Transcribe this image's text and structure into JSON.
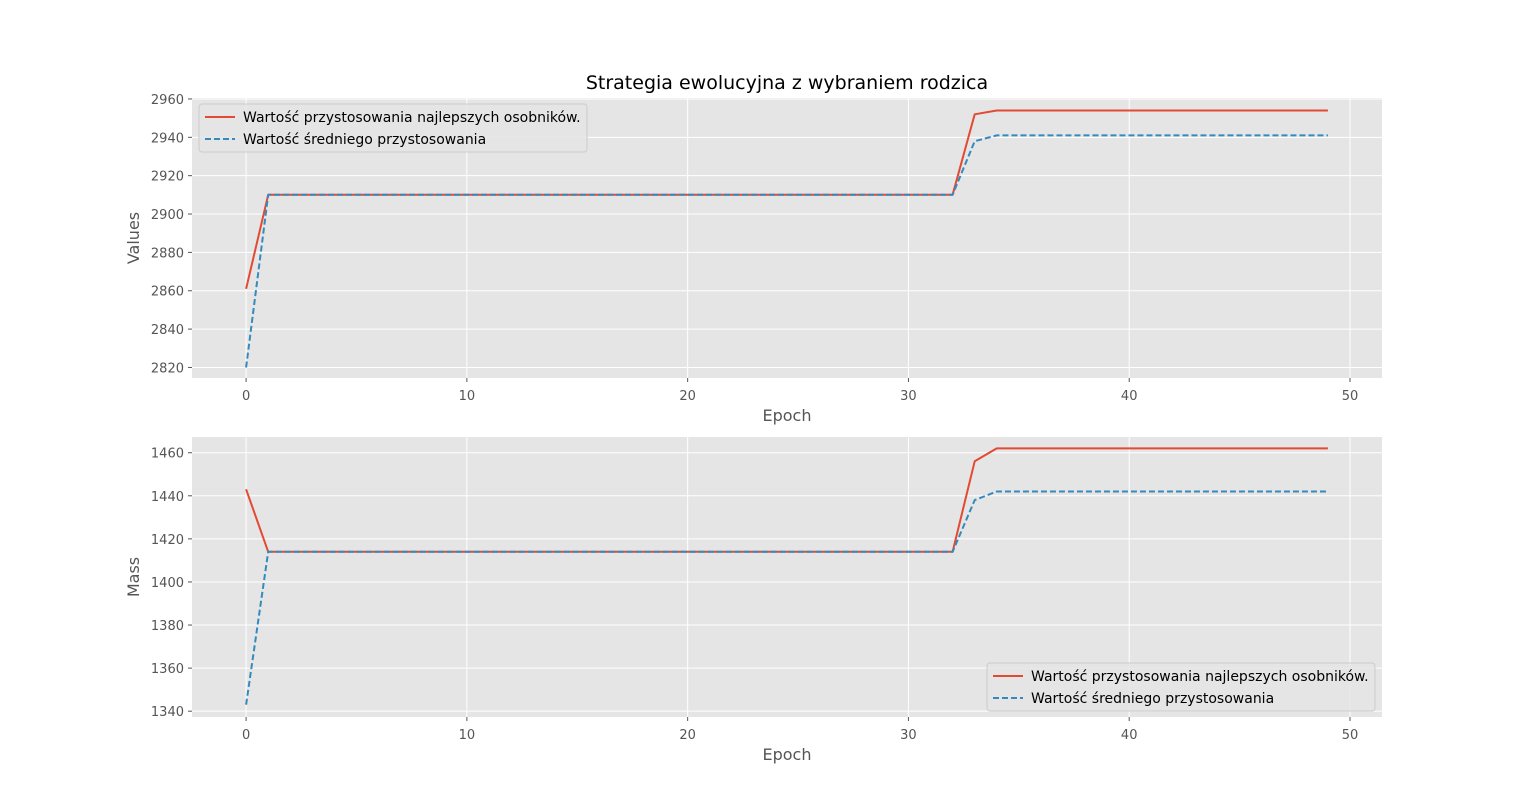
{
  "figure_title": "Strategia ewolucyjna z wybraniem rodzica",
  "colors": {
    "best": "#E24A33",
    "mean": "#348ABD",
    "plot_bg": "#E5E5E5",
    "grid": "#FFFFFF"
  },
  "chart_data": [
    {
      "type": "line",
      "xlabel": "Epoch",
      "ylabel": "Values",
      "xlim": [
        -2.45,
        51.45
      ],
      "ylim": [
        2814.5,
        2960.5
      ],
      "xticks": [
        0,
        10,
        20,
        30,
        40,
        50
      ],
      "yticks": [
        2820,
        2840,
        2860,
        2880,
        2900,
        2920,
        2940,
        2960
      ],
      "grid": true,
      "legend_position": "upper left",
      "series": [
        {
          "name": "Wartość przystosowania najlepszych osobników.",
          "style": "solid",
          "color": "#E24A33",
          "points": [
            [
              0,
              2861
            ],
            [
              1,
              2910
            ],
            [
              32,
              2910
            ],
            [
              33,
              2952
            ],
            [
              34,
              2954
            ],
            [
              49,
              2954
            ]
          ]
        },
        {
          "name": "Wartość średniego przystosowania",
          "style": "dashed",
          "color": "#348ABD",
          "points": [
            [
              0,
              2820
            ],
            [
              1,
              2910
            ],
            [
              32,
              2910
            ],
            [
              33,
              2938
            ],
            [
              34,
              2941
            ],
            [
              49,
              2941
            ]
          ]
        }
      ]
    },
    {
      "type": "line",
      "xlabel": "Epoch",
      "ylabel": "Mass",
      "xlim": [
        -2.45,
        51.45
      ],
      "ylim": [
        1337.3,
        1467.3
      ],
      "xticks": [
        0,
        10,
        20,
        30,
        40,
        50
      ],
      "yticks": [
        1340,
        1360,
        1380,
        1400,
        1420,
        1440,
        1460
      ],
      "grid": true,
      "legend_position": "lower right",
      "series": [
        {
          "name": "Wartość przystosowania najlepszych osobników.",
          "style": "solid",
          "color": "#E24A33",
          "points": [
            [
              0,
              1443
            ],
            [
              1,
              1414
            ],
            [
              32,
              1414
            ],
            [
              33,
              1456
            ],
            [
              34,
              1462
            ],
            [
              49,
              1462
            ]
          ]
        },
        {
          "name": "Wartość średniego przystosowania",
          "style": "dashed",
          "color": "#348ABD",
          "points": [
            [
              0,
              1343
            ],
            [
              1,
              1414
            ],
            [
              32,
              1414
            ],
            [
              33,
              1438
            ],
            [
              34,
              1442
            ],
            [
              49,
              1442
            ]
          ]
        }
      ]
    }
  ]
}
